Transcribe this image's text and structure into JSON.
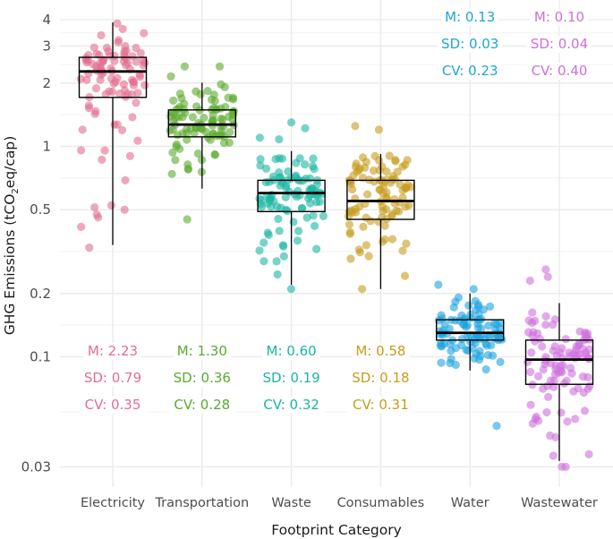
{
  "chart_data": {
    "type": "box+jitter",
    "title": "",
    "xlabel": "Footprint Category",
    "ylabel": "GHG Emissions (tCO₂eq/cap)",
    "ylabel_parts": {
      "main": "GHG Emissions (tCO",
      "sub": "2",
      "rest": "eq/cap)"
    },
    "yscale": "log10",
    "ylim": [
      0.028,
      4.5
    ],
    "yticks": [
      {
        "value": 4,
        "label": "4"
      },
      {
        "value": 3,
        "label": "3"
      },
      {
        "value": 2,
        "label": "2"
      },
      {
        "value": 1,
        "label": "1"
      },
      {
        "value": 0.5,
        "label": "0.5"
      },
      {
        "value": 0.2,
        "label": "0.2"
      },
      {
        "value": 0.1,
        "label": "0.1"
      },
      {
        "value": 0.03,
        "label": "0.03"
      }
    ],
    "grid": true,
    "legend": "none",
    "categories": [
      "Electricity",
      "Transportation",
      "Waste",
      "Consumables",
      "Water",
      "Wastewater"
    ],
    "series": [
      {
        "name": "Electricity",
        "color": "#E36E8F",
        "box": {
          "whisker_low": 0.34,
          "q1": 1.71,
          "median": 2.27,
          "q3": 2.65,
          "whisker_high": 3.88
        },
        "stats": {
          "M": "M: 2.23",
          "SD": "SD: 0.79",
          "CV": "CV: 0.35"
        },
        "stats_position": "bottom",
        "outliers": [
          0.69,
          0.5,
          0.46,
          0.33,
          0.9,
          1.2
        ],
        "n_points": 100
      },
      {
        "name": "Transportation",
        "color": "#5BAA2E",
        "box": {
          "whisker_low": 0.63,
          "q1": 1.11,
          "median": 1.27,
          "q3": 1.49,
          "whisker_high": 2.01
        },
        "stats": {
          "M": "M: 1.30",
          "SD": "SD: 0.36",
          "CV": "CV: 0.28"
        },
        "stats_position": "bottom",
        "outliers": [
          2.4,
          2.4,
          2.15,
          0.45
        ],
        "n_points": 100
      },
      {
        "name": "Waste",
        "color": "#1DB5A3",
        "box": {
          "whisker_low": 0.22,
          "q1": 0.49,
          "median": 0.6,
          "q3": 0.69,
          "whisker_high": 0.95
        },
        "stats": {
          "M": "M: 0.60",
          "SD": "SD: 0.19",
          "CV": "CV: 0.32"
        },
        "stats_position": "bottom",
        "outliers": [
          1.3,
          1.22,
          1.1,
          1.08,
          0.21
        ],
        "n_points": 100
      },
      {
        "name": "Consumables",
        "color": "#C69C1E",
        "box": {
          "whisker_low": 0.21,
          "q1": 0.45,
          "median": 0.55,
          "q3": 0.69,
          "whisker_high": 0.92
        },
        "stats": {
          "M": "M: 0.58",
          "SD": "SD: 0.18",
          "CV": "CV: 0.31"
        },
        "stats_position": "bottom",
        "outliers": [
          1.25,
          1.2,
          0.21
        ],
        "n_points": 100
      },
      {
        "name": "Water",
        "color": "#1DA4DF",
        "box": {
          "whisker_low": 0.086,
          "q1": 0.12,
          "median": 0.13,
          "q3": 0.15,
          "whisker_high": 0.2
        },
        "stats": {
          "M": "M: 0.13",
          "SD": "SD: 0.03",
          "CV": "CV: 0.23"
        },
        "stats_position": "top",
        "outliers": [
          0.22,
          0.21,
          0.047
        ],
        "n_points": 100
      },
      {
        "name": "Wastewater",
        "color": "#CF6FDD",
        "box": {
          "whisker_low": 0.032,
          "q1": 0.074,
          "median": 0.097,
          "q3": 0.12,
          "whisker_high": 0.18
        },
        "stats": {
          "M": "M: 0.10",
          "SD": "SD: 0.04",
          "CV": "CV: 0.40"
        },
        "stats_position": "top",
        "outliers": [
          0.26,
          0.24,
          0.23,
          0.03,
          0.03
        ],
        "n_points": 100
      }
    ]
  }
}
